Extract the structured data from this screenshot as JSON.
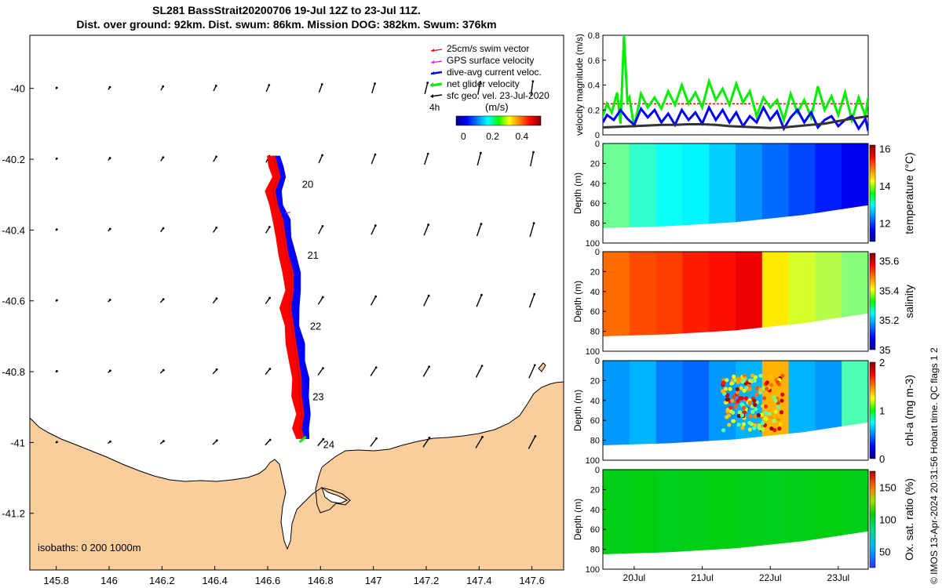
{
  "header": {
    "title_line1": "SL281 BassStrait20200706 19-Jul 12Z to 23-Jul 11Z.",
    "title_line2": "Dist. over ground: 92km. Dist. swum: 86km. Mission DOG: 382km. Swum: 376km"
  },
  "copyright": "© IMOS 13-Apr-2024 20:31:56 Hobart time. QC flags 1  2",
  "colors": {
    "land": "#f9cd9c",
    "swim": "#ff0000",
    "gps": "#ff00ff",
    "current": "#0000ff",
    "net": "#00ee00",
    "geo": "#000000"
  },
  "chart_data": [
    {
      "type": "scatter",
      "name": "glider-track-map",
      "xlim": [
        145.7,
        147.72
      ],
      "ylim": [
        -41.36,
        -39.85
      ],
      "x_ticks": [
        145.8,
        146,
        146.2,
        146.4,
        146.6,
        146.8,
        147,
        147.2,
        147.4,
        147.6
      ],
      "y_ticks": [
        -40,
        -40.2,
        -40.4,
        -40.6,
        -40.8,
        -41,
        -41.2
      ],
      "x_tick_labels": [
        "145.8",
        "146",
        "146.2",
        "146.4",
        "146.6",
        "146.8",
        "147",
        "147.2",
        "147.4",
        "147.6"
      ],
      "y_tick_labels": [
        "-40",
        "-40.2",
        "-40.4",
        "-40.6",
        "-40.8",
        "-41",
        "-41.2"
      ],
      "legend": {
        "entries": [
          "25cm/s swim vector",
          "GPS surface velocity",
          "dive-avg current veloc.",
          "net glider velocity",
          "sfc geo. vel. 23-Jul-2020"
        ],
        "interval_label": "4h",
        "colorbar_label": "(m/s)",
        "colorbar_ticks": [
          "0",
          "0.2",
          "0.4"
        ],
        "colorbar_range": [
          -0.05,
          0.53
        ]
      },
      "day_labels": [
        {
          "label": "20",
          "lon": 146.73,
          "lat": -40.27
        },
        {
          "label": "21",
          "lon": 146.75,
          "lat": -40.47
        },
        {
          "label": "22",
          "lon": 146.76,
          "lat": -40.67
        },
        {
          "label": "23",
          "lon": 146.77,
          "lat": -40.87
        },
        {
          "label": "24",
          "lon": 146.81,
          "lat": -41.005
        }
      ],
      "track": [
        [
          146.62,
          -40.19
        ],
        [
          146.63,
          -40.22
        ],
        [
          146.64,
          -40.25
        ],
        [
          146.62,
          -40.29
        ],
        [
          146.63,
          -40.33
        ],
        [
          146.65,
          -40.37
        ],
        [
          146.66,
          -40.42
        ],
        [
          146.67,
          -40.47
        ],
        [
          146.69,
          -40.52
        ],
        [
          146.69,
          -40.57
        ],
        [
          146.68,
          -40.62
        ],
        [
          146.69,
          -40.67
        ],
        [
          146.7,
          -40.72
        ],
        [
          146.71,
          -40.77
        ],
        [
          146.72,
          -40.82
        ],
        [
          146.72,
          -40.87
        ],
        [
          146.73,
          -40.92
        ],
        [
          146.72,
          -40.96
        ],
        [
          146.73,
          -40.99
        ]
      ],
      "isobaths_label": "isobaths: 0   200  1000m"
    },
    {
      "type": "line",
      "name": "velocity-magnitude",
      "ylabel": "velocity magnitude (m/s)",
      "xlim": [
        19.54,
        23.44
      ],
      "ylim": [
        0,
        0.8
      ],
      "y_ticks": [
        0,
        0.2,
        0.4,
        0.6,
        0.8
      ],
      "y_tick_labels": [
        "0",
        "0.2",
        "0.4",
        "0.6",
        "0.8"
      ],
      "series": [
        {
          "color": "#ff0000",
          "x": [
            19.54,
            23.44
          ],
          "y": [
            0.25,
            0.25
          ]
        },
        {
          "color": "#00ee00",
          "x": [
            19.54,
            19.6,
            19.67,
            19.75,
            19.8,
            19.85,
            19.9,
            19.93,
            20.0,
            20.1,
            20.2,
            20.3,
            20.4,
            20.5,
            20.6,
            20.7,
            20.8,
            20.9,
            21.0,
            21.1,
            21.2,
            21.3,
            21.4,
            21.5,
            21.6,
            21.7,
            21.8,
            21.9,
            22.0,
            22.1,
            22.2,
            22.3,
            22.4,
            22.5,
            22.6,
            22.7,
            22.8,
            22.9,
            23.0,
            23.1,
            23.2,
            23.3,
            23.4,
            23.44
          ],
          "y": [
            0.15,
            0.25,
            0.18,
            0.34,
            0.09,
            0.8,
            0.27,
            0.3,
            0.06,
            0.33,
            0.22,
            0.3,
            0.21,
            0.35,
            0.24,
            0.4,
            0.25,
            0.34,
            0.22,
            0.43,
            0.28,
            0.37,
            0.24,
            0.41,
            0.26,
            0.35,
            0.15,
            0.3,
            0.22,
            0.28,
            0.12,
            0.33,
            0.18,
            0.28,
            0.14,
            0.39,
            0.2,
            0.31,
            0.16,
            0.34,
            0.12,
            0.3,
            0.15,
            0.3
          ]
        },
        {
          "color": "#0000ff",
          "x": [
            19.54,
            19.6,
            19.7,
            19.8,
            19.9,
            20.0,
            20.1,
            20.2,
            20.3,
            20.4,
            20.5,
            20.6,
            20.7,
            20.8,
            20.9,
            21.0,
            21.1,
            21.2,
            21.3,
            21.4,
            21.5,
            21.6,
            21.7,
            21.8,
            21.9,
            22.0,
            22.1,
            22.2,
            22.3,
            22.4,
            22.5,
            22.6,
            22.7,
            22.8,
            22.9,
            23.0,
            23.1,
            23.2,
            23.3,
            23.4,
            23.44
          ],
          "y": [
            0.1,
            0.16,
            0.12,
            0.2,
            0.13,
            0.08,
            0.21,
            0.14,
            0.2,
            0.1,
            0.17,
            0.08,
            0.2,
            0.12,
            0.18,
            0.09,
            0.22,
            0.12,
            0.2,
            0.1,
            0.18,
            0.07,
            0.15,
            0.1,
            0.22,
            0.12,
            0.19,
            0.05,
            0.14,
            0.2,
            0.1,
            0.18,
            0.06,
            0.12,
            0.15,
            0.07,
            0.12,
            0.15,
            0.05,
            0.13,
            0.03
          ]
        },
        {
          "color": "#333333",
          "x": [
            19.54,
            19.8,
            20.0,
            20.2,
            20.4,
            20.6,
            20.8,
            21.0,
            21.2,
            21.4,
            21.6,
            21.8,
            22.0,
            22.2,
            22.4,
            22.6,
            22.8,
            23.0,
            23.2,
            23.44
          ],
          "y": [
            0.06,
            0.065,
            0.07,
            0.075,
            0.08,
            0.08,
            0.085,
            0.085,
            0.08,
            0.07,
            0.065,
            0.06,
            0.055,
            0.06,
            0.07,
            0.08,
            0.09,
            0.11,
            0.13,
            0.15
          ]
        }
      ]
    },
    {
      "type": "heatmap",
      "name": "temperature-section",
      "ylabel": "Depth (m)",
      "colorbar_label": "temperature (°C)",
      "clim": [
        11,
        16.2
      ],
      "colorbar_ticks": [
        12,
        14,
        16
      ],
      "colorbar_tick_labels": [
        "12",
        "14",
        "16"
      ],
      "y_ticks": [
        0,
        20,
        40,
        60,
        80,
        100
      ],
      "y_tick_labels": [
        "0",
        "20",
        "40",
        "60",
        "80",
        "100"
      ],
      "ylim": [
        0,
        100
      ],
      "surface_values": [
        13.5,
        13.2,
        13.0,
        12.9,
        12.7,
        12.4,
        12.2,
        12.0,
        11.8,
        11.6
      ]
    },
    {
      "type": "heatmap",
      "name": "salinity-section",
      "ylabel": "Depth (m)",
      "colorbar_label": "salinity",
      "clim": [
        35.0,
        35.65
      ],
      "colorbar_ticks": [
        35,
        35.2,
        35.4,
        35.6
      ],
      "colorbar_tick_labels": [
        "35",
        "35.2",
        "35.4",
        "35.6"
      ],
      "y_ticks": [
        0,
        20,
        40,
        60,
        80,
        100
      ],
      "y_tick_labels": [
        "0",
        "20",
        "40",
        "60",
        "80",
        "100"
      ],
      "ylim": [
        0,
        100
      ],
      "surface_values": [
        35.5,
        35.52,
        35.53,
        35.55,
        35.56,
        35.58,
        35.42,
        35.38,
        35.36,
        35.33
      ]
    },
    {
      "type": "heatmap",
      "name": "chlorophyll-section",
      "ylabel": "Depth (m)",
      "colorbar_label": "chl-a (mg m-3)",
      "clim": [
        0,
        2
      ],
      "colorbar_ticks": [
        0,
        1,
        2
      ],
      "colorbar_tick_labels": [
        "0",
        "1",
        "2"
      ],
      "y_ticks": [
        0,
        20,
        40,
        60,
        80,
        100
      ],
      "y_tick_labels": [
        "0",
        "20",
        "40",
        "60",
        "80",
        "100"
      ],
      "ylim": [
        0,
        100
      ],
      "surface_values": [
        0.55,
        0.6,
        0.5,
        0.45,
        0.55,
        0.6,
        1.4,
        0.6,
        0.55,
        0.9
      ]
    },
    {
      "type": "heatmap",
      "name": "oxygen-section",
      "ylabel": "Depth (m)",
      "colorbar_label": "Ox. sat. ratio (%)",
      "clim": [
        25,
        175
      ],
      "colorbar_ticks": [
        50,
        100,
        150
      ],
      "colorbar_tick_labels": [
        "50",
        "100",
        "150"
      ],
      "y_ticks": [
        0,
        20,
        40,
        60,
        80,
        100
      ],
      "y_tick_labels": [
        "0",
        "20",
        "40",
        "60",
        "80",
        "100"
      ],
      "ylim": [
        0,
        100
      ],
      "surface_values": [
        104,
        105,
        103,
        104,
        105,
        104,
        103,
        104,
        105,
        104
      ]
    }
  ],
  "section_x_axis": {
    "xlim": [
      19.54,
      23.44
    ],
    "ticks": [
      20,
      21,
      22,
      23
    ],
    "tick_labels": [
      "20Jul",
      "21Jul",
      "22Jul",
      "23Jul"
    ]
  }
}
